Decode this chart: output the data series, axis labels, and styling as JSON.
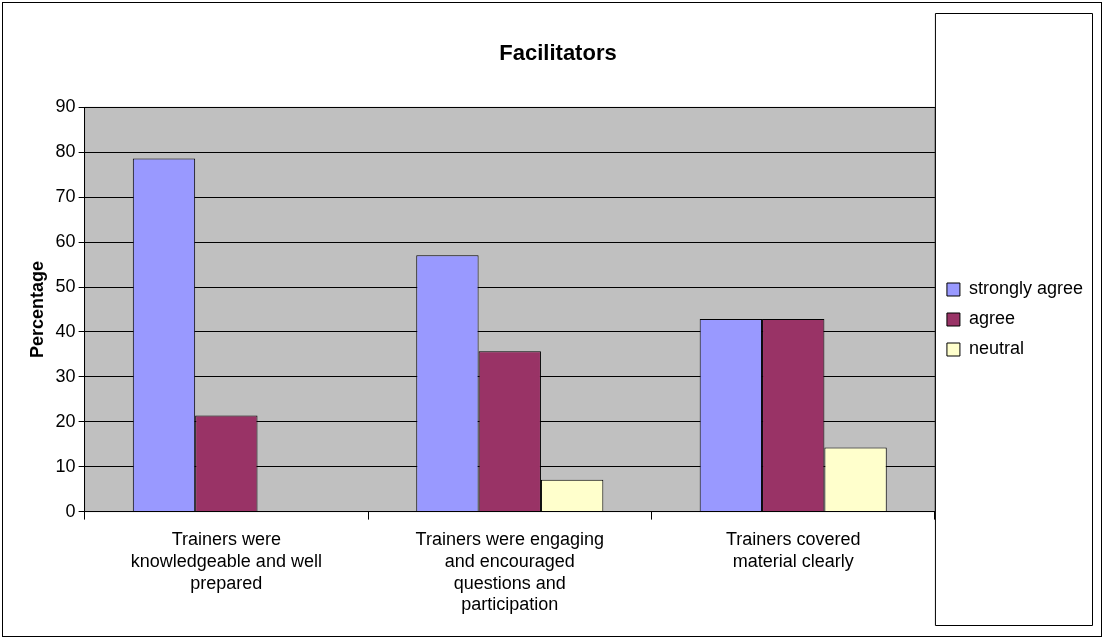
{
  "chart_data": {
    "type": "bar",
    "title": "Facilitators",
    "ylabel": "Percentage",
    "categories": [
      "Trainers were knowledgeable and well prepared",
      "Trainers were engaging and encouraged questions and participation",
      "Trainers covered material clearly"
    ],
    "series": [
      {
        "name": "strongly agree",
        "color": "#9999ff",
        "values": [
          78.6,
          57.1,
          42.9
        ]
      },
      {
        "name": "agree",
        "color": "#993366",
        "values": [
          21.4,
          35.7,
          42.9
        ]
      },
      {
        "name": "neutral",
        "color": "#ffffcc",
        "values": [
          0,
          7.1,
          14.3
        ]
      }
    ],
    "ylim": [
      0,
      90
    ],
    "yticks": [
      0,
      10,
      20,
      30,
      40,
      50,
      60,
      70,
      80,
      90
    ],
    "grid": "y",
    "legend": "right"
  }
}
